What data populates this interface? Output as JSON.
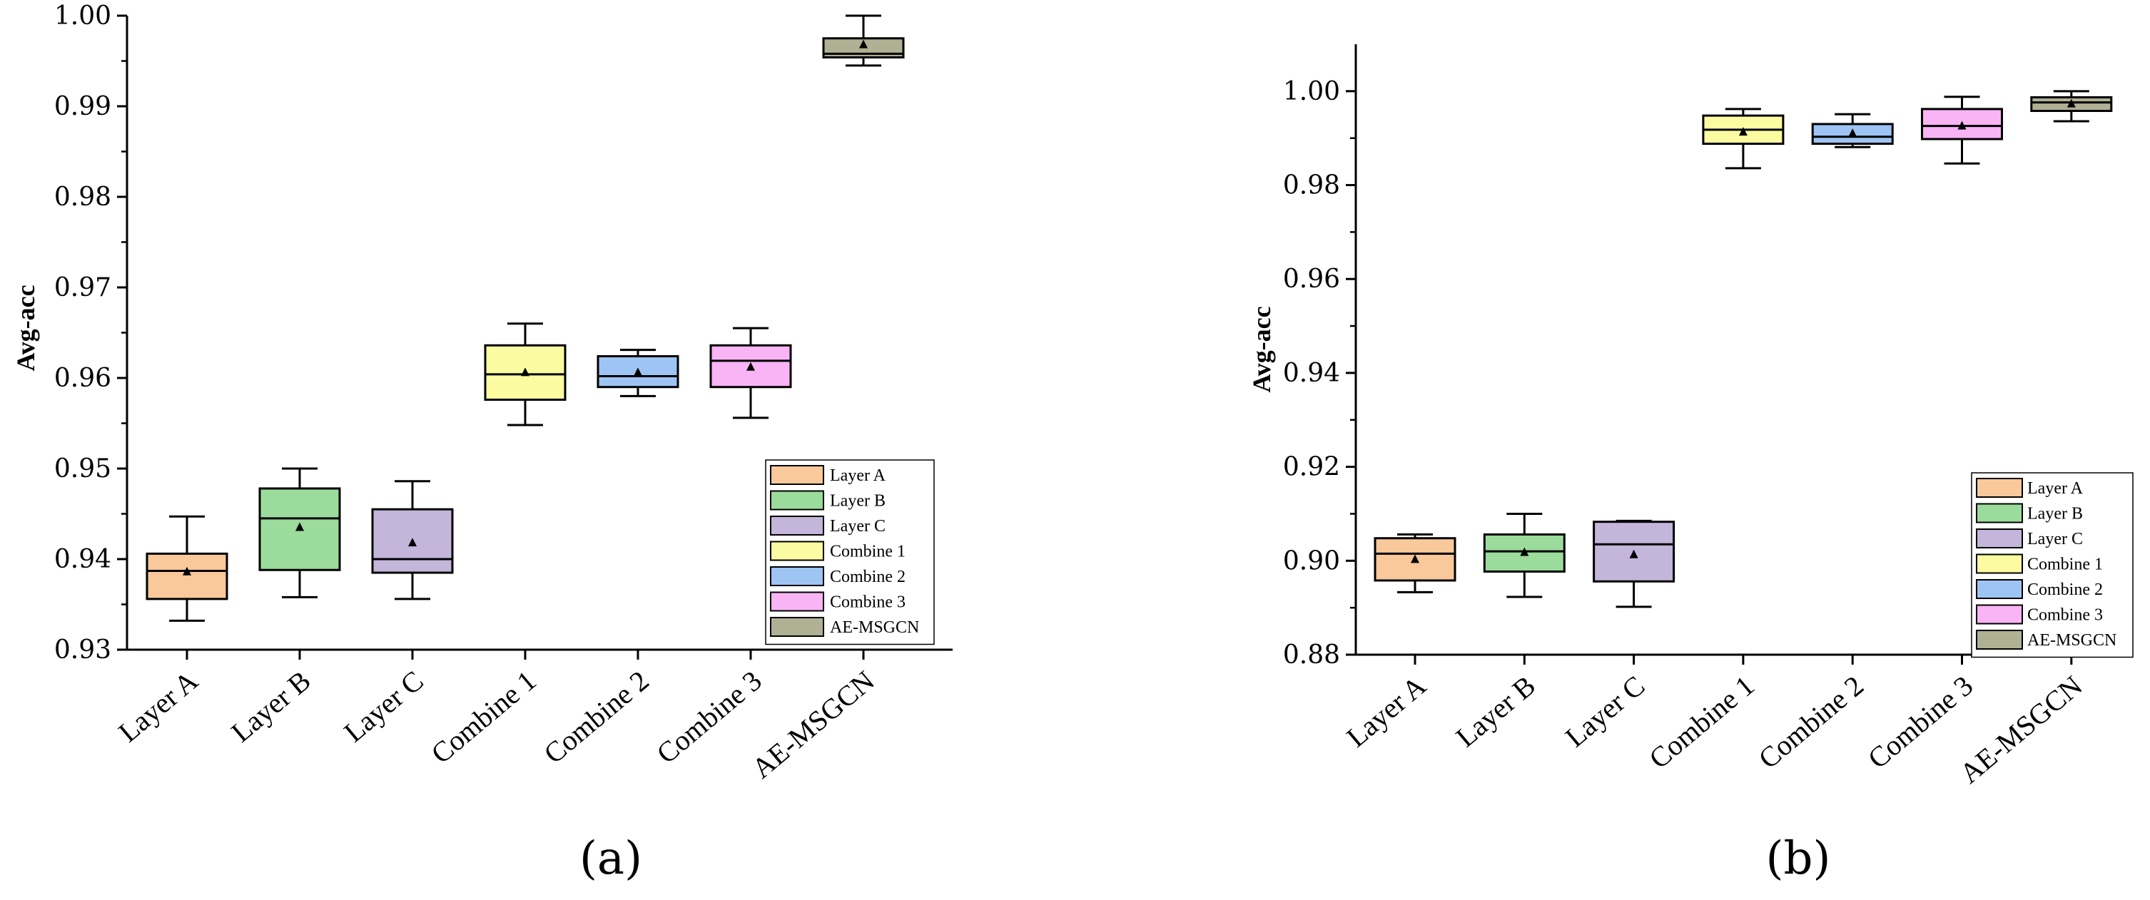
{
  "chart_data": [
    {
      "type": "box",
      "panel_label": "(a)",
      "ylabel": "Avg-acc",
      "xlabel": "",
      "ylim": [
        0.93,
        1.0
      ],
      "yticks": [
        "0.93",
        "0.94",
        "0.95",
        "0.96",
        "0.97",
        "0.98",
        "0.99",
        "1.00"
      ],
      "ytick_values": [
        0.93,
        0.94,
        0.95,
        0.96,
        0.97,
        0.98,
        0.99,
        1.0
      ],
      "legend_position": "middle-right",
      "categories": [
        "Layer A",
        "Layer B",
        "Layer C",
        "Combine 1",
        "Combine 2",
        "Combine 3",
        "AE-MSGCN"
      ],
      "series": [
        {
          "name": "Layer A",
          "color": "#f9c89b",
          "min": 0.9332,
          "q1": 0.9356,
          "median": 0.9387,
          "q3": 0.9406,
          "max": 0.9447,
          "mean": 0.9386
        },
        {
          "name": "Layer B",
          "color": "#9bdb9b",
          "min": 0.9358,
          "q1": 0.9388,
          "median": 0.9445,
          "q3": 0.9478,
          "max": 0.95,
          "mean": 0.9435
        },
        {
          "name": "Layer C",
          "color": "#c4b5db",
          "min": 0.9356,
          "q1": 0.9385,
          "median": 0.94,
          "q3": 0.9455,
          "max": 0.9486,
          "mean": 0.9418
        },
        {
          "name": "Combine 1",
          "color": "#fbfba1",
          "min": 0.9548,
          "q1": 0.9576,
          "median": 0.9604,
          "q3": 0.9636,
          "max": 0.966,
          "mean": 0.9606
        },
        {
          "name": "Combine 2",
          "color": "#9ec4f3",
          "min": 0.958,
          "q1": 0.959,
          "median": 0.9602,
          "q3": 0.9624,
          "max": 0.9631,
          "mean": 0.9606
        },
        {
          "name": "Combine 3",
          "color": "#f8b4f4",
          "min": 0.9556,
          "q1": 0.959,
          "median": 0.9619,
          "q3": 0.9636,
          "max": 0.9655,
          "mean": 0.9612
        },
        {
          "name": "AE-MSGCN",
          "color": "#b0b194",
          "min": 0.9945,
          "q1": 0.9954,
          "median": 0.9958,
          "q3": 0.9975,
          "max": 1.0,
          "mean": 0.9968
        }
      ]
    },
    {
      "type": "box",
      "panel_label": "(b)",
      "ylabel": "Avg-acc",
      "xlabel": "",
      "ylim": [
        0.88,
        1.01
      ],
      "yticks": [
        "0.88",
        "0.90",
        "0.92",
        "0.94",
        "0.96",
        "0.98",
        "1.00"
      ],
      "ytick_values": [
        0.88,
        0.9,
        0.92,
        0.94,
        0.96,
        0.98,
        1.0
      ],
      "legend_position": "bottom-right",
      "categories": [
        "Layer A",
        "Layer B",
        "Layer C",
        "Combine 1",
        "Combine 2",
        "Combine 3",
        "AE-MSGCN"
      ],
      "series": [
        {
          "name": "Layer A",
          "color": "#f9c89b",
          "min": 0.8933,
          "q1": 0.8958,
          "median": 0.9015,
          "q3": 0.9048,
          "max": 0.9056,
          "mean": 0.9003
        },
        {
          "name": "Layer B",
          "color": "#9bdb9b",
          "min": 0.8923,
          "q1": 0.8977,
          "median": 0.902,
          "q3": 0.9056,
          "max": 0.91,
          "mean": 0.9018
        },
        {
          "name": "Layer C",
          "color": "#c4b5db",
          "min": 0.8902,
          "q1": 0.8956,
          "median": 0.9035,
          "q3": 0.9083,
          "max": 0.9085,
          "mean": 0.9013
        },
        {
          "name": "Combine 1",
          "color": "#fbfba1",
          "min": 0.9836,
          "q1": 0.9888,
          "median": 0.9918,
          "q3": 0.9948,
          "max": 0.9962,
          "mean": 0.9913
        },
        {
          "name": "Combine 2",
          "color": "#9ec4f3",
          "min": 0.9881,
          "q1": 0.9888,
          "median": 0.9903,
          "q3": 0.993,
          "max": 0.9951,
          "mean": 0.991
        },
        {
          "name": "Combine 3",
          "color": "#f8b4f4",
          "min": 0.9846,
          "q1": 0.9898,
          "median": 0.9926,
          "q3": 0.9962,
          "max": 0.9988,
          "mean": 0.9926
        },
        {
          "name": "AE-MSGCN",
          "color": "#b0b194",
          "min": 0.9936,
          "q1": 0.9958,
          "median": 0.9976,
          "q3": 0.9987,
          "max": 1.0,
          "mean": 0.9973
        }
      ]
    }
  ]
}
